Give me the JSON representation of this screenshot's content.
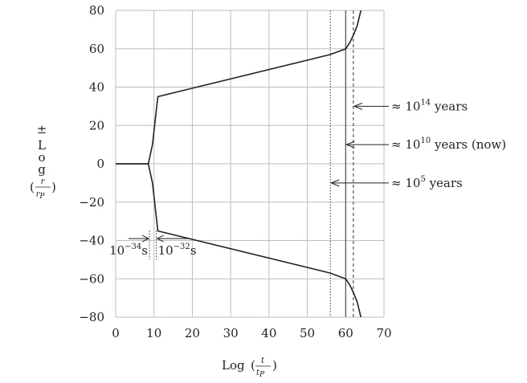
{
  "chart_data": {
    "type": "line",
    "xlabel": "Log",
    "xlabel_fraction": {
      "numerator": "t",
      "denominator": "t",
      "denominator_subscript": "P"
    },
    "ylabel_prefix": "±",
    "ylabel": "Log",
    "ylabel_fraction": {
      "numerator": "r",
      "denominator": "r",
      "denominator_subscript": "P"
    },
    "xlim": [
      0,
      70
    ],
    "ylim": [
      -80,
      80
    ],
    "xticks": [
      0,
      10,
      20,
      30,
      40,
      50,
      60,
      70
    ],
    "yticks": [
      -80,
      -60,
      -40,
      -20,
      0,
      20,
      40,
      60,
      80
    ],
    "grid": true,
    "series": [
      {
        "x": [
          0,
          8.5,
          9.6,
          11,
          56,
          60,
          61,
          62,
          63,
          63.6,
          64.1
        ],
        "y": [
          0,
          0,
          10,
          35,
          57,
          60,
          63,
          67,
          72,
          77,
          81
        ]
      },
      {
        "x": [
          0,
          8.5,
          9.6,
          11,
          56,
          60,
          61,
          62,
          63,
          63.6,
          64.1
        ],
        "y": [
          0,
          0,
          -10,
          -35,
          -57,
          -60,
          -63,
          -67,
          -72,
          -77,
          -81
        ]
      }
    ],
    "vlines": [
      {
        "x": 56,
        "style": "dotted"
      },
      {
        "x": 60,
        "style": "solid"
      },
      {
        "x": 62,
        "style": "dashed"
      }
    ],
    "annotations": [
      {
        "prefix": "≈ 10",
        "exp": "14",
        "suffix": " years",
        "x": 62,
        "y": 30
      },
      {
        "prefix": "≈ 10",
        "exp": "10",
        "suffix": " years (now)",
        "x": 60,
        "y": 10
      },
      {
        "prefix": "≈ 10",
        "exp": "5",
        "suffix": " years",
        "x": 56,
        "y": -10
      }
    ],
    "markers": [
      {
        "base": "10",
        "exp": "−34",
        "unit": "s",
        "x": 8.8
      },
      {
        "base": "10",
        "exp": "−32",
        "unit": "s",
        "x": 10.6
      }
    ]
  }
}
